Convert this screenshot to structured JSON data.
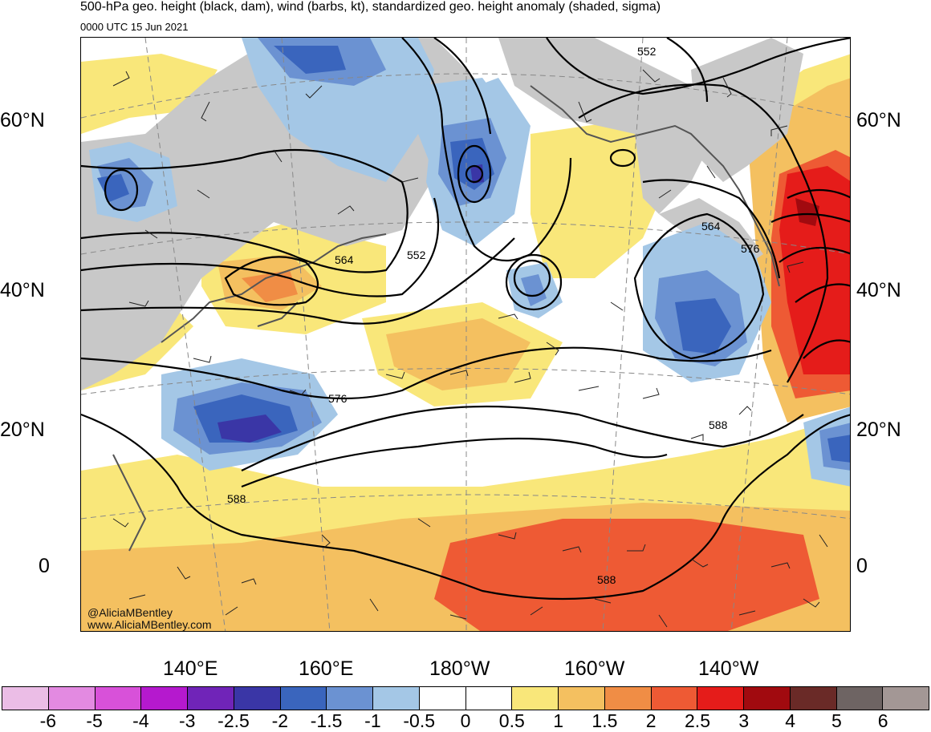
{
  "header": {
    "title": "500-hPa geo. height (black, dam), wind (barbs, kt), standardized geo. height anomaly (shaded, sigma)",
    "valid_time": "0000 UTC 15 Jun 2021"
  },
  "map": {
    "projection": "polar stereographic, North Pacific",
    "lat_labels_left": [
      "60°N",
      "40°N",
      "20°N",
      "0"
    ],
    "lat_labels_right": [
      "60°N",
      "40°N",
      "20°N",
      "0"
    ],
    "lon_labels": [
      "140°E",
      "160°E",
      "180°W",
      "160°W",
      "140°W"
    ],
    "contour_labels": [
      "552",
      "564",
      "552",
      "564",
      "576",
      "576",
      "588",
      "588",
      "588"
    ],
    "credit_handle": "@AliciaMBentley",
    "credit_url": "www.AliciaMBentley.com"
  },
  "colorbar": {
    "labels": [
      "-6",
      "-5",
      "-4",
      "-3",
      "-2.5",
      "-2",
      "-1.5",
      "-1",
      "-0.5",
      "0",
      "0.5",
      "1",
      "1.5",
      "2",
      "2.5",
      "3",
      "4",
      "5",
      "6"
    ],
    "colors": [
      "#ebbde6",
      "#e38ae1",
      "#d851d9",
      "#b519ce",
      "#7024b8",
      "#3a36a6",
      "#3a65bd",
      "#6b92d2",
      "#a4c7e6",
      "#ffffff",
      "#ffffff",
      "#f9e77a",
      "#f4c060",
      "#f08d45",
      "#ee5a34",
      "#e51c1a",
      "#a10a0f",
      "#6a2a27",
      "#6e6463",
      "#a39795"
    ]
  }
}
